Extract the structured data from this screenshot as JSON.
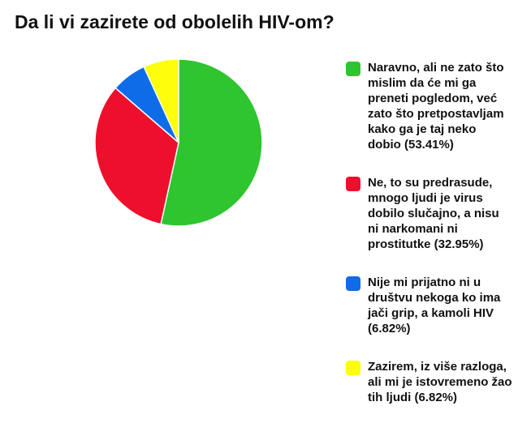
{
  "chart_data": {
    "type": "pie",
    "title": "Da li vi zazirete od obolelih HIV-om?",
    "legend_position": "right",
    "slices": [
      {
        "label": "Naravno, ali ne zato što mislim da će mi ga preneti pogledom, već zato što pretpostavljam kako ga je taj neko dobio",
        "value": 53.41,
        "display": "(53.41%)",
        "color": "#2ec52e"
      },
      {
        "label": "Ne, to su predrasude, mnogo ljudi je virus dobilo slučajno, a nisu ni narkomani ni prostitutke",
        "value": 32.95,
        "display": "(32.95%)",
        "color": "#ee0f2c"
      },
      {
        "label": "Nije mi prijatno ni u društvu nekoga ko ima jači grip, a kamoli HIV",
        "value": 6.82,
        "display": "(6.82%)",
        "color": "#0e6ce8"
      },
      {
        "label": "Zazirem, iz više razloga, ali mi je istovremeno žao tih ljudi",
        "value": 6.82,
        "display": "(6.82%)",
        "color": "#fefe0a"
      }
    ]
  }
}
